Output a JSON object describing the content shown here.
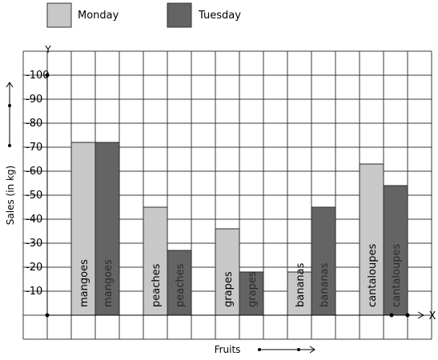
{
  "chart_data": {
    "type": "bar",
    "title": "",
    "xlabel": "Fruits",
    "ylabel": "Sales (in kg)",
    "x_axis_letter": "X",
    "y_axis_letter": "Y",
    "ylim": [
      0,
      100
    ],
    "yticks": [
      10,
      20,
      30,
      40,
      50,
      60,
      70,
      80,
      90,
      100
    ],
    "ytick_labels": [
      "10",
      "20",
      "30",
      "40",
      "50",
      "60",
      "70",
      "80",
      "90",
      "100"
    ],
    "categories": [
      "mangoes",
      "peaches",
      "grapes",
      "bananas",
      "cantaloupes"
    ],
    "series": [
      {
        "name": "Monday",
        "color": "#c8c8c8",
        "values": [
          72,
          45,
          36,
          18,
          63
        ]
      },
      {
        "name": "Tuesday",
        "color": "#646464",
        "values": [
          72,
          27,
          18,
          45,
          54
        ]
      }
    ],
    "grid": true,
    "legend_position": "top-left"
  }
}
